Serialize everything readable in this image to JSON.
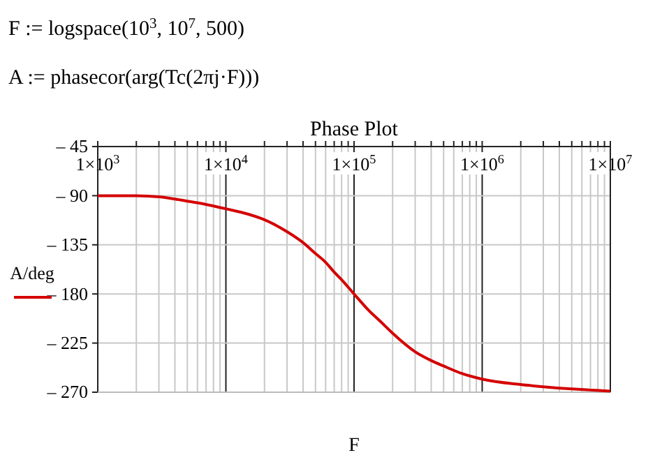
{
  "chart_data": {
    "type": "line",
    "title": "Phase Plot",
    "xlabel": "F",
    "ylabel": "A/deg",
    "annotations": [
      "F := logspace(10$^{3}$, 10$^{7}$, 500)",
      "A := phasecor(arg(Tc(2πj·F)))"
    ],
    "log": "x",
    "grid": true,
    "marker": "none",
    "line_style": "solid",
    "xlim": [
      1000,
      10000000
    ],
    "ylim": [
      -270,
      -45
    ],
    "xticks": [
      {
        "value": 1000,
        "label": "1×10$^{3}$"
      },
      {
        "value": 2000,
        "label": null
      },
      {
        "value": 3000,
        "label": null
      },
      {
        "value": 4000,
        "label": null
      },
      {
        "value": 5000,
        "label": null
      },
      {
        "value": 6000,
        "label": null
      },
      {
        "value": 7000,
        "label": null
      },
      {
        "value": 8000,
        "label": null
      },
      {
        "value": 9000,
        "label": null
      },
      {
        "value": 10000,
        "label": "1×10$^{4}$"
      },
      {
        "value": 20000,
        "label": null
      },
      {
        "value": 30000,
        "label": null
      },
      {
        "value": 40000,
        "label": null
      },
      {
        "value": 50000,
        "label": null
      },
      {
        "value": 60000,
        "label": null
      },
      {
        "value": 70000,
        "label": null
      },
      {
        "value": 80000,
        "label": null
      },
      {
        "value": 90000,
        "label": null
      },
      {
        "value": 100000,
        "label": "1×10$^{5}$"
      },
      {
        "value": 200000,
        "label": null
      },
      {
        "value": 300000,
        "label": null
      },
      {
        "value": 400000,
        "label": null
      },
      {
        "value": 500000,
        "label": null
      },
      {
        "value": 600000,
        "label": null
      },
      {
        "value": 700000,
        "label": null
      },
      {
        "value": 800000,
        "label": null
      },
      {
        "value": 900000,
        "label": null
      },
      {
        "value": 1000000,
        "label": "1×10$^{6}$"
      },
      {
        "value": 2000000,
        "label": null
      },
      {
        "value": 3000000,
        "label": null
      },
      {
        "value": 4000000,
        "label": null
      },
      {
        "value": 5000000,
        "label": null
      },
      {
        "value": 6000000,
        "label": null
      },
      {
        "value": 7000000,
        "label": null
      },
      {
        "value": 8000000,
        "label": null
      },
      {
        "value": 9000000,
        "label": null
      },
      {
        "value": 10000000,
        "label": "1×10$^{7}$"
      }
    ],
    "yticks": [
      {
        "value": -45,
        "label": "– 45"
      },
      {
        "value": -90,
        "label": "– 90"
      },
      {
        "value": -135,
        "label": "– 135"
      },
      {
        "value": -180,
        "label": "– 180"
      },
      {
        "value": -225,
        "label": "– 225"
      },
      {
        "value": -270,
        "label": "– 270"
      }
    ],
    "x": [
      1000,
      2000,
      3000,
      5000,
      7000,
      10000,
      15000,
      20000,
      30000,
      40000,
      50000,
      60000,
      70000,
      80000,
      100000,
      130000,
      160000,
      200000,
      300000,
      400000,
      500000,
      700000,
      1000000,
      2000000,
      3000000,
      5000000,
      7000000,
      10000000
    ],
    "series": [
      {
        "color": "#d40000",
        "values": [
          -90,
          -90,
          -91,
          -95,
          -98,
          -102,
          -107,
          -112,
          -123,
          -133,
          -143,
          -151,
          -160,
          -167,
          -180,
          -195,
          -205,
          -216,
          -233,
          -241,
          -246,
          -253,
          -258,
          -263,
          -265,
          -267,
          -268,
          -269
        ]
      }
    ]
  }
}
